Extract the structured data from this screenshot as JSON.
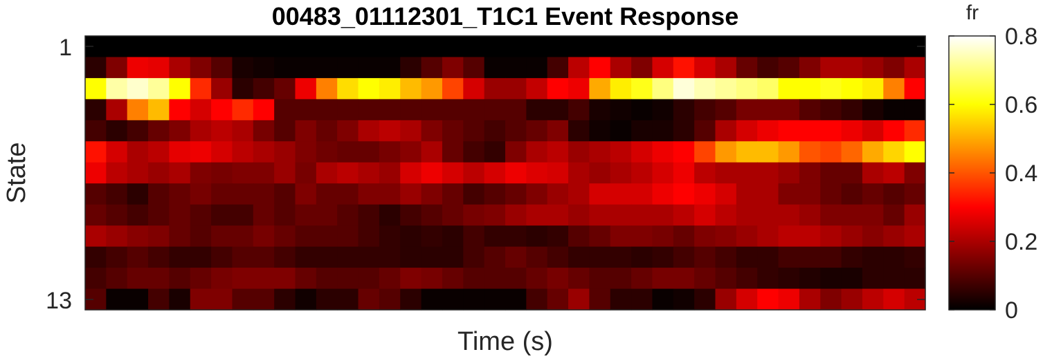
{
  "chart_data": {
    "type": "heatmap",
    "title": "00483_01112301_T1C1 Event Response",
    "xlabel": "Time (s)",
    "ylabel": "State",
    "y_ticks": [
      "1",
      "13"
    ],
    "colorbar": {
      "label": "fr",
      "min": 0,
      "max": 0.8,
      "ticks": [
        "0",
        "0.2",
        "0.4",
        "0.6",
        "0.8"
      ],
      "colormap": "hot"
    },
    "rows": 13,
    "cols": 40,
    "values": [
      [
        0,
        0,
        0,
        0,
        0,
        0,
        0,
        0,
        0,
        0,
        0,
        0,
        0,
        0,
        0,
        0,
        0,
        0,
        0,
        0,
        0,
        0,
        0,
        0,
        0,
        0,
        0,
        0,
        0,
        0,
        0,
        0,
        0,
        0,
        0,
        0,
        0,
        0,
        0,
        0
      ],
      [
        0.05,
        0.15,
        0.28,
        0.27,
        0.2,
        0.15,
        0.1,
        0.03,
        0.02,
        0.01,
        0.01,
        0.01,
        0.01,
        0.01,
        0.01,
        0.05,
        0.1,
        0.15,
        0.1,
        0.01,
        0.01,
        0.01,
        0.08,
        0.22,
        0.3,
        0.2,
        0.15,
        0.25,
        0.32,
        0.25,
        0.2,
        0.12,
        0.08,
        0.1,
        0.15,
        0.2,
        0.2,
        0.18,
        0.15,
        0.2
      ],
      [
        0.6,
        0.73,
        0.76,
        0.72,
        0.6,
        0.35,
        0.18,
        0.05,
        0.08,
        0.12,
        0.28,
        0.45,
        0.56,
        0.6,
        0.58,
        0.52,
        0.48,
        0.38,
        0.25,
        0.18,
        0.18,
        0.23,
        0.3,
        0.28,
        0.5,
        0.58,
        0.62,
        0.7,
        0.77,
        0.74,
        0.72,
        0.7,
        0.68,
        0.6,
        0.6,
        0.62,
        0.6,
        0.58,
        0.45,
        0.3
      ],
      [
        0.05,
        0.2,
        0.45,
        0.52,
        0.3,
        0.25,
        0.3,
        0.35,
        0.3,
        0.1,
        0.1,
        0.1,
        0.1,
        0.1,
        0.1,
        0.1,
        0.1,
        0.1,
        0.1,
        0.1,
        0.1,
        0.05,
        0.05,
        0.08,
        0.03,
        0.02,
        0.01,
        0.02,
        0.05,
        0.08,
        0.1,
        0.14,
        0.14,
        0.14,
        0.1,
        0.08,
        0.06,
        0.03,
        0.01,
        0.01
      ],
      [
        0.08,
        0.05,
        0.08,
        0.12,
        0.15,
        0.2,
        0.22,
        0.2,
        0.14,
        0.1,
        0.15,
        0.12,
        0.15,
        0.2,
        0.22,
        0.2,
        0.15,
        0.12,
        0.1,
        0.08,
        0.1,
        0.12,
        0.15,
        0.05,
        0.02,
        0.01,
        0.03,
        0.03,
        0.05,
        0.1,
        0.2,
        0.25,
        0.28,
        0.3,
        0.3,
        0.3,
        0.28,
        0.25,
        0.3,
        0.35
      ],
      [
        0.32,
        0.25,
        0.2,
        0.22,
        0.27,
        0.28,
        0.25,
        0.22,
        0.2,
        0.18,
        0.15,
        0.13,
        0.12,
        0.12,
        0.14,
        0.16,
        0.2,
        0.12,
        0.08,
        0.06,
        0.15,
        0.2,
        0.22,
        0.18,
        0.2,
        0.22,
        0.25,
        0.28,
        0.3,
        0.38,
        0.48,
        0.52,
        0.52,
        0.48,
        0.4,
        0.38,
        0.42,
        0.5,
        0.55,
        0.6
      ],
      [
        0.28,
        0.22,
        0.2,
        0.18,
        0.2,
        0.15,
        0.14,
        0.15,
        0.15,
        0.18,
        0.14,
        0.2,
        0.22,
        0.2,
        0.18,
        0.25,
        0.28,
        0.25,
        0.22,
        0.25,
        0.28,
        0.26,
        0.25,
        0.2,
        0.18,
        0.2,
        0.22,
        0.25,
        0.28,
        0.22,
        0.2,
        0.2,
        0.2,
        0.18,
        0.15,
        0.12,
        0.12,
        0.2,
        0.22,
        0.15
      ],
      [
        0.1,
        0.08,
        0.05,
        0.1,
        0.12,
        0.14,
        0.12,
        0.12,
        0.12,
        0.1,
        0.15,
        0.12,
        0.12,
        0.15,
        0.15,
        0.18,
        0.15,
        0.12,
        0.08,
        0.1,
        0.12,
        0.15,
        0.18,
        0.2,
        0.25,
        0.25,
        0.25,
        0.28,
        0.3,
        0.28,
        0.25,
        0.2,
        0.2,
        0.15,
        0.15,
        0.12,
        0.1,
        0.12,
        0.1,
        0.12
      ],
      [
        0.12,
        0.1,
        0.08,
        0.1,
        0.12,
        0.1,
        0.08,
        0.08,
        0.12,
        0.1,
        0.12,
        0.12,
        0.1,
        0.08,
        0.05,
        0.08,
        0.1,
        0.12,
        0.14,
        0.15,
        0.18,
        0.2,
        0.2,
        0.18,
        0.2,
        0.2,
        0.2,
        0.2,
        0.22,
        0.25,
        0.22,
        0.2,
        0.2,
        0.2,
        0.18,
        0.15,
        0.15,
        0.15,
        0.12,
        0.18
      ],
      [
        0.2,
        0.18,
        0.16,
        0.15,
        0.12,
        0.1,
        0.12,
        0.12,
        0.14,
        0.12,
        0.1,
        0.1,
        0.1,
        0.08,
        0.06,
        0.05,
        0.06,
        0.05,
        0.08,
        0.06,
        0.06,
        0.05,
        0.06,
        0.1,
        0.12,
        0.15,
        0.15,
        0.14,
        0.12,
        0.15,
        0.16,
        0.18,
        0.2,
        0.22,
        0.22,
        0.2,
        0.18,
        0.16,
        0.18,
        0.2
      ],
      [
        0.06,
        0.08,
        0.1,
        0.08,
        0.06,
        0.06,
        0.08,
        0.1,
        0.1,
        0.08,
        0.06,
        0.06,
        0.06,
        0.06,
        0.06,
        0.05,
        0.05,
        0.05,
        0.08,
        0.1,
        0.12,
        0.1,
        0.08,
        0.06,
        0.06,
        0.06,
        0.05,
        0.06,
        0.08,
        0.1,
        0.08,
        0.06,
        0.06,
        0.08,
        0.08,
        0.08,
        0.06,
        0.05,
        0.05,
        0.06
      ],
      [
        0.08,
        0.1,
        0.12,
        0.12,
        0.1,
        0.12,
        0.14,
        0.15,
        0.15,
        0.15,
        0.12,
        0.1,
        0.1,
        0.1,
        0.12,
        0.15,
        0.14,
        0.12,
        0.1,
        0.1,
        0.1,
        0.12,
        0.14,
        0.12,
        0.1,
        0.1,
        0.12,
        0.14,
        0.14,
        0.12,
        0.1,
        0.08,
        0.06,
        0.05,
        0.04,
        0.03,
        0.03,
        0.05,
        0.05,
        0.05
      ],
      [
        0.1,
        0.01,
        0.01,
        0.08,
        0.03,
        0.15,
        0.15,
        0.1,
        0.1,
        0.05,
        0.02,
        0.05,
        0.05,
        0.12,
        0.1,
        0.05,
        0.01,
        0.01,
        0.01,
        0.01,
        0.01,
        0.08,
        0.12,
        0.18,
        0.1,
        0.05,
        0.05,
        0.01,
        0.02,
        0.05,
        0.18,
        0.25,
        0.3,
        0.28,
        0.2,
        0.15,
        0.18,
        0.22,
        0.25,
        0.22
      ]
    ]
  }
}
